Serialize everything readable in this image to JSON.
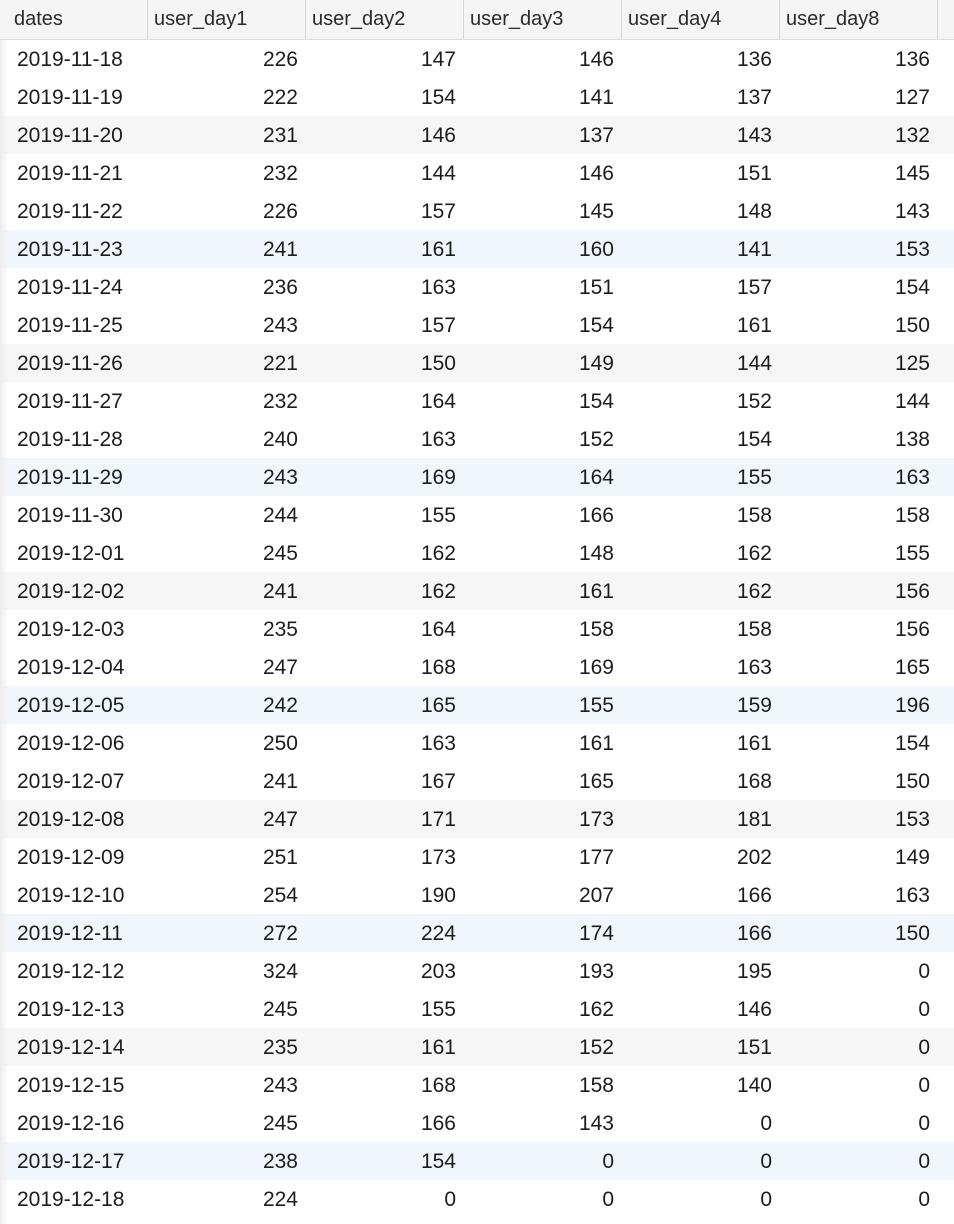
{
  "table": {
    "columns": [
      "dates",
      "user_day1",
      "user_day2",
      "user_day3",
      "user_day4",
      "user_day8"
    ],
    "rows": [
      [
        "2019-11-18",
        "226",
        "147",
        "146",
        "136",
        "136"
      ],
      [
        "2019-11-19",
        "222",
        "154",
        "141",
        "137",
        "127"
      ],
      [
        "2019-11-20",
        "231",
        "146",
        "137",
        "143",
        "132"
      ],
      [
        "2019-11-21",
        "232",
        "144",
        "146",
        "151",
        "145"
      ],
      [
        "2019-11-22",
        "226",
        "157",
        "145",
        "148",
        "143"
      ],
      [
        "2019-11-23",
        "241",
        "161",
        "160",
        "141",
        "153"
      ],
      [
        "2019-11-24",
        "236",
        "163",
        "151",
        "157",
        "154"
      ],
      [
        "2019-11-25",
        "243",
        "157",
        "154",
        "161",
        "150"
      ],
      [
        "2019-11-26",
        "221",
        "150",
        "149",
        "144",
        "125"
      ],
      [
        "2019-11-27",
        "232",
        "164",
        "154",
        "152",
        "144"
      ],
      [
        "2019-11-28",
        "240",
        "163",
        "152",
        "154",
        "138"
      ],
      [
        "2019-11-29",
        "243",
        "169",
        "164",
        "155",
        "163"
      ],
      [
        "2019-11-30",
        "244",
        "155",
        "166",
        "158",
        "158"
      ],
      [
        "2019-12-01",
        "245",
        "162",
        "148",
        "162",
        "155"
      ],
      [
        "2019-12-02",
        "241",
        "162",
        "161",
        "162",
        "156"
      ],
      [
        "2019-12-03",
        "235",
        "164",
        "158",
        "158",
        "156"
      ],
      [
        "2019-12-04",
        "247",
        "168",
        "169",
        "163",
        "165"
      ],
      [
        "2019-12-05",
        "242",
        "165",
        "155",
        "159",
        "196"
      ],
      [
        "2019-12-06",
        "250",
        "163",
        "161",
        "161",
        "154"
      ],
      [
        "2019-12-07",
        "241",
        "167",
        "165",
        "168",
        "150"
      ],
      [
        "2019-12-08",
        "247",
        "171",
        "173",
        "181",
        "153"
      ],
      [
        "2019-12-09",
        "251",
        "173",
        "177",
        "202",
        "149"
      ],
      [
        "2019-12-10",
        "254",
        "190",
        "207",
        "166",
        "163"
      ],
      [
        "2019-12-11",
        "272",
        "224",
        "174",
        "166",
        "150"
      ],
      [
        "2019-12-12",
        "324",
        "203",
        "193",
        "195",
        "0"
      ],
      [
        "2019-12-13",
        "245",
        "155",
        "162",
        "146",
        "0"
      ],
      [
        "2019-12-14",
        "235",
        "161",
        "152",
        "151",
        "0"
      ],
      [
        "2019-12-15",
        "243",
        "168",
        "158",
        "140",
        "0"
      ],
      [
        "2019-12-16",
        "245",
        "166",
        "143",
        "0",
        "0"
      ],
      [
        "2019-12-17",
        "238",
        "154",
        "0",
        "0",
        "0"
      ],
      [
        "2019-12-18",
        "224",
        "0",
        "0",
        "0",
        "0"
      ]
    ],
    "row_shading": [
      "none",
      "none",
      "alt",
      "none",
      "none",
      "sel",
      "none",
      "none",
      "alt",
      "none",
      "none",
      "sel",
      "none",
      "none",
      "alt",
      "none",
      "none",
      "sel",
      "none",
      "none",
      "alt",
      "none",
      "none",
      "sel",
      "none",
      "none",
      "alt",
      "none",
      "none",
      "sel",
      "none"
    ]
  },
  "colors": {
    "header_bg": "#f5f5f5",
    "stripe_bg": "#f6f6f6",
    "highlight_bg": "#f1f6fc",
    "text": "#1c1c1c"
  }
}
